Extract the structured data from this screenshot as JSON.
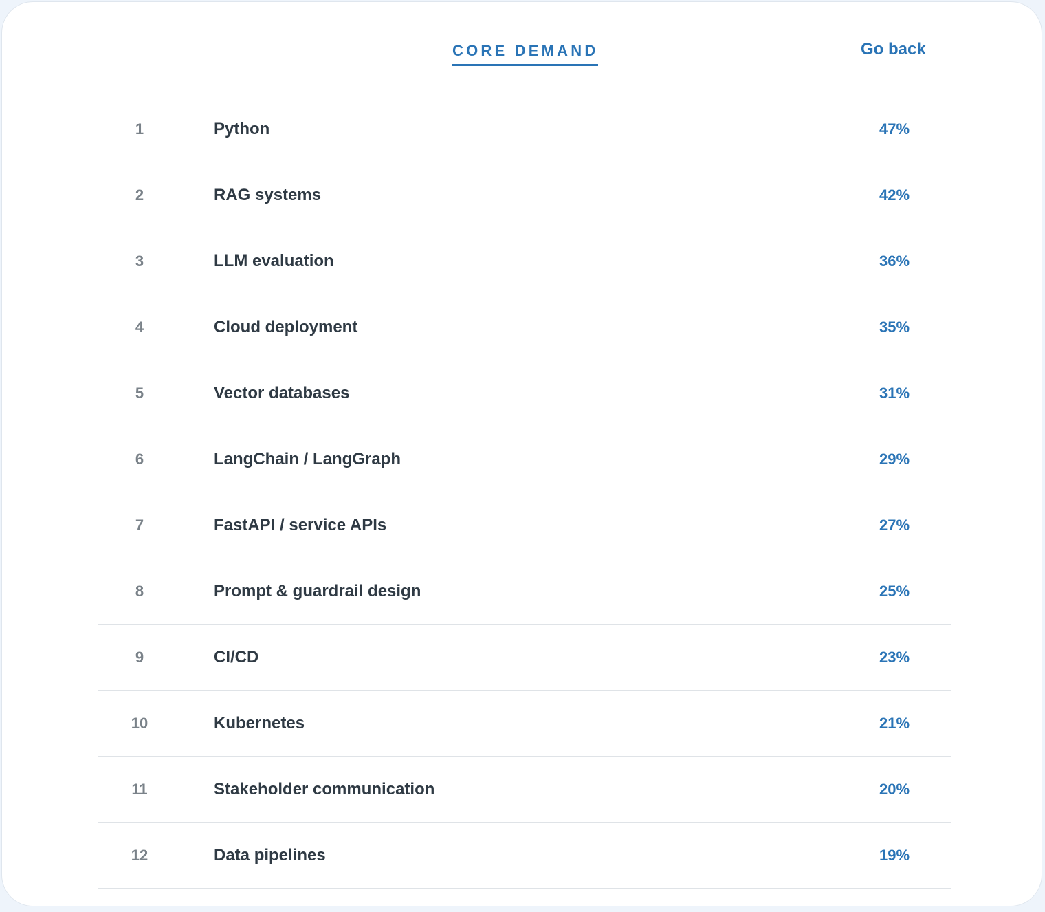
{
  "header": {
    "tab_title": "CORE DEMAND",
    "go_back_label": "Go back"
  },
  "rows": [
    {
      "rank": "1",
      "skill": "Python",
      "percent": "47%"
    },
    {
      "rank": "2",
      "skill": "RAG systems",
      "percent": "42%"
    },
    {
      "rank": "3",
      "skill": "LLM evaluation",
      "percent": "36%"
    },
    {
      "rank": "4",
      "skill": "Cloud deployment",
      "percent": "35%"
    },
    {
      "rank": "5",
      "skill": "Vector databases",
      "percent": "31%"
    },
    {
      "rank": "6",
      "skill": "LangChain / LangGraph",
      "percent": "29%"
    },
    {
      "rank": "7",
      "skill": "FastAPI / service APIs",
      "percent": "27%"
    },
    {
      "rank": "8",
      "skill": "Prompt & guardrail design",
      "percent": "25%"
    },
    {
      "rank": "9",
      "skill": "CI/CD",
      "percent": "23%"
    },
    {
      "rank": "10",
      "skill": "Kubernetes",
      "percent": "21%"
    },
    {
      "rank": "11",
      "skill": "Stakeholder communication",
      "percent": "20%"
    },
    {
      "rank": "12",
      "skill": "Data pipelines",
      "percent": "19%"
    }
  ],
  "colors": {
    "accent": "#2a74b6",
    "text": "#2f3a44",
    "rank": "#7a8289",
    "divider": "#dfe3e7",
    "page_background": "#eef4fb"
  }
}
